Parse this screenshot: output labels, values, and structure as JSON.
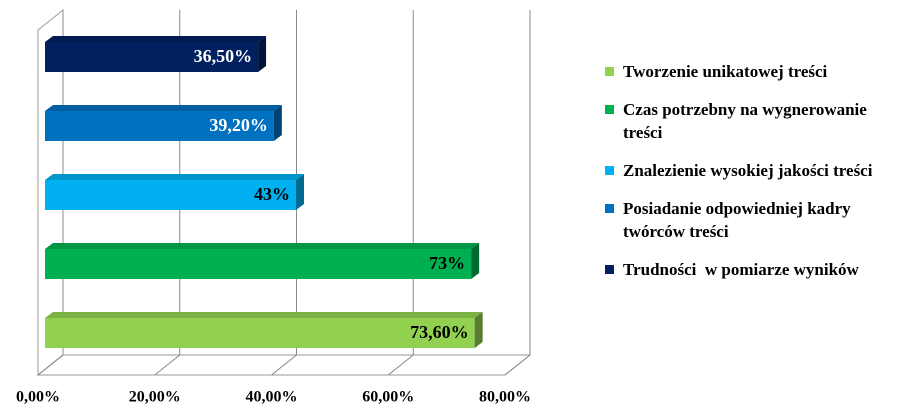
{
  "chart_data": {
    "type": "bar",
    "orientation": "horizontal",
    "series": [
      {
        "name": "Tworzenie unikatowej treści",
        "color": "#92d050",
        "values": [
          73.6
        ],
        "value_labels": [
          "73,60%"
        ]
      },
      {
        "name": "Czas potrzebny na wygnerowanie treści",
        "color": "#00b050",
        "values": [
          73
        ],
        "value_labels": [
          "73%"
        ]
      },
      {
        "name": "Znalezienie wysokiej jakości treści",
        "color": "#00b0f0",
        "values": [
          43
        ],
        "value_labels": [
          "43%"
        ]
      },
      {
        "name": "Posiadanie odpowiedniej kadry twórców treści",
        "color": "#0070c0",
        "values": [
          39.2
        ],
        "value_labels": [
          "39,20%"
        ]
      },
      {
        "name": "Trudności  w pomiarze wyników",
        "color": "#002060",
        "values": [
          36.5
        ],
        "value_labels": [
          "36,50%"
        ]
      }
    ],
    "xlim": [
      0,
      80
    ],
    "xticks": [
      {
        "value": 0,
        "label": "0,00%"
      },
      {
        "value": 20,
        "label": "20,00%"
      },
      {
        "value": 40,
        "label": "40,00%"
      },
      {
        "value": 60,
        "label": "60,00%"
      },
      {
        "value": 80,
        "label": "80,00%"
      }
    ],
    "grid": true,
    "legend": "right"
  }
}
